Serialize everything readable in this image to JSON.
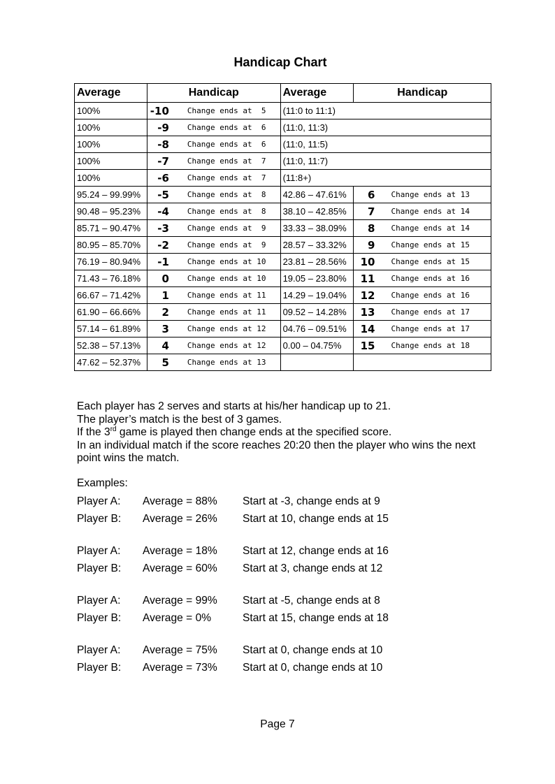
{
  "title": "Handicap Chart",
  "table": {
    "headers": [
      "Average",
      "Handicap",
      "Average",
      "Handicap"
    ],
    "top_rows": [
      {
        "avg": "100%",
        "hcp": "-10",
        "change": "Change ends at  5",
        "note": "(11:0 to 11:1)"
      },
      {
        "avg": "100%",
        "hcp": "-9",
        "change": "Change ends at  6",
        "note": "(11:0, 11:3)"
      },
      {
        "avg": "100%",
        "hcp": "-8",
        "change": "Change ends at  6",
        "note": "(11:0, 11:5)"
      },
      {
        "avg": "100%",
        "hcp": "-7",
        "change": "Change ends at  7",
        "note": "(11:0, 11:7)"
      },
      {
        "avg": "100%",
        "hcp": "-6",
        "change": "Change ends at  7",
        "note": "(11:8+)"
      }
    ],
    "rows": [
      {
        "avg": "95.24 – 99.99%",
        "hcp": "-5",
        "change": "Change ends at  8",
        "avg2": "42.86 – 47.61%",
        "hcp2": "6",
        "change2": "Change ends at 13"
      },
      {
        "avg": "90.48 – 95.23%",
        "hcp": "-4",
        "change": "Change ends at  8",
        "avg2": "38.10 – 42.85%",
        "hcp2": "7",
        "change2": "Change ends at 14"
      },
      {
        "avg": "85.71 – 90.47%",
        "hcp": "-3",
        "change": "Change ends at  9",
        "avg2": "33.33 – 38.09%",
        "hcp2": "8",
        "change2": "Change ends at 14"
      },
      {
        "avg": "80.95 – 85.70%",
        "hcp": "-2",
        "change": "Change ends at  9",
        "avg2": "28.57 – 33.32%",
        "hcp2": "9",
        "change2": "Change ends at 15"
      },
      {
        "avg": "76.19 – 80.94%",
        "hcp": "-1",
        "change": "Change ends at 10",
        "avg2": "23.81 – 28.56%",
        "hcp2": "10",
        "change2": "Change ends at 15"
      },
      {
        "avg": "71.43 – 76.18%",
        "hcp": "0",
        "change": "Change ends at 10",
        "avg2": "19.05 – 23.80%",
        "hcp2": "11",
        "change2": "Change ends at 16"
      },
      {
        "avg": "66.67 – 71.42%",
        "hcp": "1",
        "change": "Change ends at 11",
        "avg2": "14.29 – 19.04%",
        "hcp2": "12",
        "change2": "Change ends at 16"
      },
      {
        "avg": "61.90 – 66.66%",
        "hcp": "2",
        "change": "Change ends at 11",
        "avg2": "09.52 – 14.28%",
        "hcp2": "13",
        "change2": "Change ends at 17"
      },
      {
        "avg": "57.14 – 61.89%",
        "hcp": "3",
        "change": "Change ends at 12",
        "avg2": "04.76 – 09.51%",
        "hcp2": "14",
        "change2": "Change ends at 17"
      },
      {
        "avg": "52.38 – 57.13%",
        "hcp": "4",
        "change": "Change ends at 12",
        "avg2": "0.00 – 04.75%",
        "hcp2": "15",
        "change2": "Change ends at 18"
      },
      {
        "avg": "47.62 – 52.37%",
        "hcp": "5",
        "change": "Change ends at 13",
        "avg2": "",
        "hcp2": "",
        "change2": ""
      }
    ]
  },
  "rules": {
    "line1": "Each player has 2 serves and starts at his/her handicap up to 21.",
    "line2": "The player’s match is the best of 3 games.",
    "line3_pre": "If the 3",
    "line3_sup": "rd",
    "line3_post": " game is played then change ends at the specified score.",
    "line4": "In an individual match if the score reaches 20:20 then the player who wins the next point wins the match."
  },
  "examples_label": "Examples:",
  "examples": [
    {
      "player": "Player A:",
      "average": "Average = 88%",
      "result": "Start at -3, change ends at 9"
    },
    {
      "player": "Player B:",
      "average": "Average = 26%",
      "result": "Start at 10, change ends at 15"
    },
    {
      "player": "Player A:",
      "average": "Average = 18%",
      "result": "Start at 12, change ends at 16"
    },
    {
      "player": "Player B:",
      "average": "Average = 60%",
      "result": "Start at 3, change ends at 12"
    },
    {
      "player": "Player A:",
      "average": "Average = 99%",
      "result": "Start at -5, change ends at 8"
    },
    {
      "player": "Player B:",
      "average": "Average = 0%",
      "result": "Start at 15, change ends at 18"
    },
    {
      "player": "Player A:",
      "average": "Average = 75%",
      "result": "Start at 0, change ends at 10"
    },
    {
      "player": "Player B:",
      "average": "Average = 73%",
      "result": "Start at 0, change ends at 10"
    }
  ],
  "footer": "Page 7"
}
